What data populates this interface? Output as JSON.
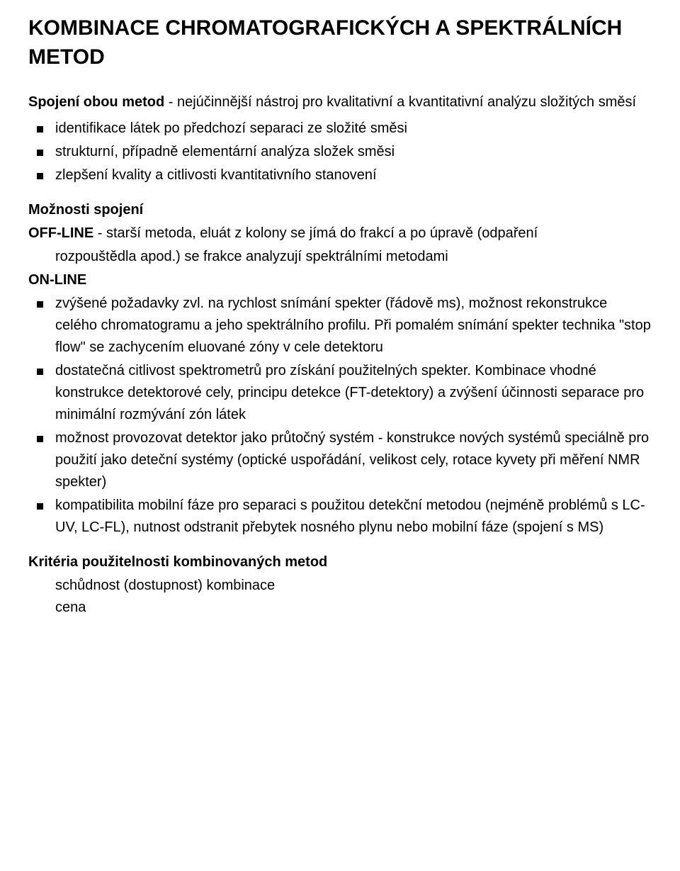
{
  "title": "KOMBINACE CHROMATOGRAFICKÝCH A SPEKTRÁLNÍCH METOD",
  "intro": {
    "bold": "Spojení obou metod",
    "rest": " - nejúčinnější nástroj pro kvalitativní a kvantitativní analýzu složitých směsí"
  },
  "list1": [
    "identifikace látek po předchozí separaci ze složité směsi",
    "strukturní, případně elementární analýza složek směsi",
    "zlepšení kvality a citlivosti kvantitativního stanovení"
  ],
  "possibilities_heading": "Možnosti spojení",
  "offline": {
    "bold": "OFF-LINE",
    "line1": " - starší metoda, eluát z kolony se jímá do frakcí a po úpravě (odpaření",
    "line2": "rozpouštědla apod.) se frakce analyzují spektrálními metodami"
  },
  "online_label": "ON-LINE",
  "online_items": [
    "zvýšené požadavky zvl. na rychlost snímání spekter (řádově ms), možnost rekonstrukce celého chromatogramu a jeho spektrálního profilu. Při pomalém snímání spekter technika \"stop flow\" se zachycením eluované zóny v cele detektoru",
    "dostatečná citlivost spektrometrů pro získání použitelných spekter. Kombinace vhodné konstrukce detektorové cely, principu detekce (FT-detektory)  a zvýšení účinnosti separace pro minimální rozmývání zón látek",
    "možnost provozovat detektor jako průtočný systém - konstrukce nových systémů speciálně pro použití jako deteční systémy (optické uspořádání, velikost cely, rotace kyvety při měření NMR spekter)",
    "kompatibilita mobilní fáze pro separaci s použitou detekční metodou (nejméně problémů s LC-UV, LC-FL), nutnost odstranit přebytek nosného plynu nebo mobilní fáze (spojení s MS)"
  ],
  "criteria_heading": "Kritéria použitelnosti kombinovaných metod",
  "criteria_items": [
    "schůdnost (dostupnost) kombinace",
    "cena"
  ],
  "style": {
    "background_color": "#ffffff",
    "text_color": "#000000",
    "font_family": "Arial",
    "title_fontsize": 30,
    "body_fontsize": 20,
    "bullet_marker": "square",
    "bullet_color": "#000000"
  }
}
